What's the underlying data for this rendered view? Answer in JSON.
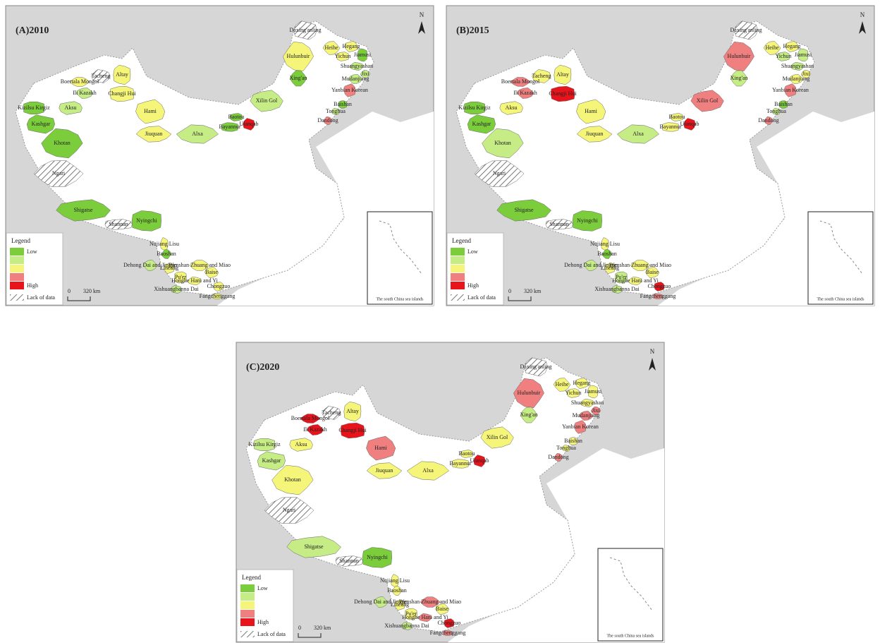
{
  "regions": [
    "Daxing'anling",
    "Hulunbuir",
    "Heihe",
    "Hegang",
    "Yichun",
    "Jiamusi",
    "Shuangyashan",
    "Jixi",
    "Mudanjiang",
    "Yanbian Korean",
    "Baishan",
    "Tonghua",
    "Dandong",
    "Xing'an",
    "Xilin Gol",
    "Baotou",
    "Bayannur",
    "Ulanqab",
    "Alxa",
    "Jiuquan",
    "Hami",
    "Changji Hui",
    "Altay",
    "Tacheng",
    "Boertala Mongol",
    "Ili Kazakh",
    "Aksu",
    "Kizilsu Kirgiz",
    "Kashgar",
    "Khotan",
    "Ngari",
    "Shigatse",
    "Shannan",
    "Nyingchi",
    "Nujiang Lisu",
    "Baoshan",
    "Dehong Dai and Jingpo",
    "Lincang",
    "Pu'er",
    "Xishuangbanna Dai",
    "Honghe Hani and Yi",
    "Wenshan Zhuang and Miao",
    "Baise",
    "Chongzuo",
    "Fangchenggang"
  ],
  "classes": [
    "#7ccd3c",
    "#c5ec85",
    "#f5f57a",
    "#f08080",
    "#e8141c"
  ],
  "panels": [
    {
      "title": "(A)2010",
      "north": "N",
      "legend": {
        "title": "Legend",
        "low": "Low",
        "high": "High",
        "no_data": "Lack of data"
      },
      "scale": {
        "zero": "0",
        "distance": "320 km"
      },
      "inset_caption": "The south China sea islands",
      "region_classes": [
        null,
        2,
        2,
        2,
        2,
        0,
        1,
        1,
        1,
        3,
        0,
        1,
        3,
        0,
        1,
        0,
        0,
        4,
        1,
        2,
        2,
        2,
        2,
        null,
        2,
        1,
        1,
        0,
        0,
        0,
        null,
        0,
        null,
        0,
        2,
        0,
        1,
        2,
        2,
        1,
        2,
        2,
        2,
        2,
        2
      ]
    },
    {
      "title": "(B)2015",
      "north": "N",
      "legend": {
        "title": "Legend",
        "low": "Low",
        "high": "High",
        "no_data": "Lack of data"
      },
      "scale": {
        "zero": "0",
        "distance": "320 km"
      },
      "inset_caption": "The south China sea islands",
      "region_classes": [
        null,
        3,
        2,
        2,
        1,
        1,
        1,
        2,
        2,
        3,
        0,
        1,
        3,
        1,
        3,
        2,
        2,
        4,
        1,
        2,
        2,
        4,
        2,
        2,
        3,
        3,
        2,
        0,
        0,
        1,
        null,
        0,
        null,
        0,
        2,
        0,
        1,
        2,
        1,
        1,
        2,
        2,
        2,
        4,
        3
      ]
    },
    {
      "title": "(C)2020",
      "north": "N",
      "legend": {
        "title": "Legend",
        "low": "Low",
        "high": "High",
        "no_data": "Lack of data"
      },
      "scale": {
        "zero": "0",
        "distance": "320 km"
      },
      "inset_caption": "The south China sea islands",
      "region_classes": [
        null,
        3,
        2,
        2,
        2,
        2,
        2,
        3,
        3,
        3,
        2,
        2,
        3,
        1,
        2,
        2,
        2,
        4,
        2,
        2,
        3,
        4,
        2,
        null,
        4,
        4,
        2,
        1,
        1,
        2,
        null,
        1,
        null,
        0,
        2,
        2,
        1,
        2,
        2,
        1,
        3,
        3,
        2,
        4,
        3
      ]
    }
  ]
}
